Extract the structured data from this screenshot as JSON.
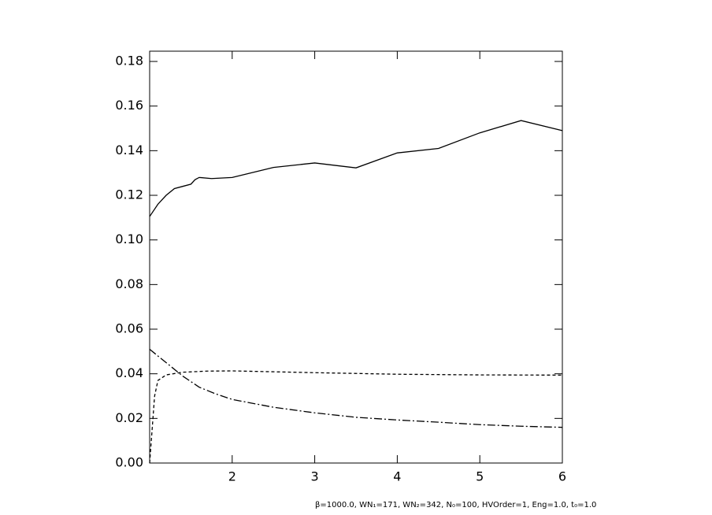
{
  "chart_data": {
    "type": "line",
    "annotation": "β=1000.0, WN₁=171, WN₂=342, N₀=100, HVOrder=1, Eng=1.0, t₀=1.0",
    "xlim": [
      1,
      6
    ],
    "xticks": [
      2,
      3,
      4,
      5,
      6
    ],
    "ylim": [
      0,
      0.1846
    ],
    "yticks": [
      {
        "value": 0,
        "label": "0.00"
      },
      0.02,
      0.04,
      0.06,
      0.08,
      {
        "value": 0.1,
        "label": "0.10"
      },
      0.12,
      0.14,
      0.16,
      0.18
    ],
    "grid": false,
    "series": [
      {
        "color": "#000000",
        "dash": "solid",
        "x": [
          1,
          1.1,
          1.2,
          1.3,
          1.4,
          1.5,
          1.55,
          1.6,
          1.75,
          2,
          2.5,
          3,
          3.5,
          4,
          4.5,
          5,
          5.5,
          6
        ],
        "values": [
          0.1105,
          0.116,
          0.12,
          0.123,
          0.124,
          0.125,
          0.127,
          0.128,
          0.1275,
          0.128,
          0.1325,
          0.1345,
          0.1323,
          0.139,
          0.141,
          0.148,
          0.1535,
          0.149
        ]
      },
      {
        "color": "#000000",
        "dash": "dashed",
        "x": [
          1,
          1.03,
          1.06,
          1.1,
          1.2,
          1.4,
          1.7,
          2,
          3,
          4,
          5,
          6
        ],
        "values": [
          0,
          0.015,
          0.03,
          0.037,
          0.0395,
          0.0407,
          0.0412,
          0.0413,
          0.0405,
          0.0398,
          0.0395,
          0.0394
        ]
      },
      {
        "color": "#000000",
        "dash": "dashdot",
        "x": [
          1,
          1.2,
          1.4,
          1.6,
          1.8,
          2,
          2.5,
          3,
          3.5,
          4,
          4.5,
          5,
          5.5,
          6
        ],
        "values": [
          0.051,
          0.045,
          0.039,
          0.034,
          0.031,
          0.0285,
          0.025,
          0.0225,
          0.0205,
          0.0193,
          0.0183,
          0.0172,
          0.0165,
          0.016
        ]
      }
    ]
  }
}
